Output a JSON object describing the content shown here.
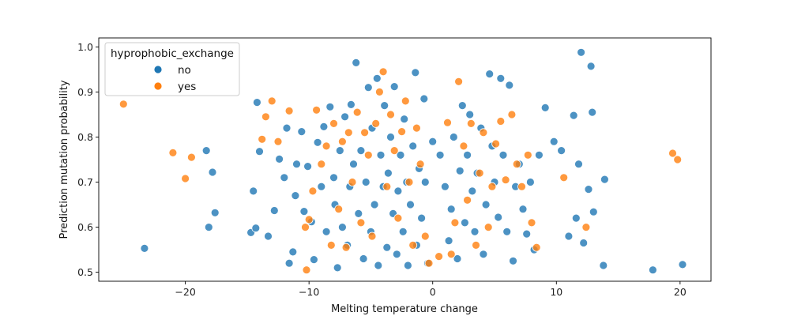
{
  "chart_data": {
    "type": "scatter",
    "xlabel": "Melting temperature change",
    "ylabel": "Prediction mutation probability",
    "xlim": [
      -27,
      22.5
    ],
    "ylim": [
      0.48,
      1.02
    ],
    "xticks": [
      -20,
      -10,
      0,
      10,
      20
    ],
    "xtick_labels": [
      "−20",
      "−10",
      "0",
      "10",
      "20"
    ],
    "yticks": [
      0.5,
      0.6,
      0.7,
      0.8,
      0.9,
      1.0
    ],
    "ytick_labels": [
      "0.5",
      "0.6",
      "0.7",
      "0.8",
      "0.9",
      "1.0"
    ],
    "grid": false,
    "legend": {
      "title": "hyprophobic_exchange",
      "placement": "top-left",
      "entries": [
        "no",
        "yes"
      ]
    },
    "series": [
      {
        "name": "no",
        "color": "#1f77b4",
        "points": [
          [
            -23.3,
            0.553
          ],
          [
            -18.3,
            0.77
          ],
          [
            -17.8,
            0.722
          ],
          [
            -17.6,
            0.632
          ],
          [
            -18.1,
            0.6
          ],
          [
            -14.2,
            0.877
          ],
          [
            -14.0,
            0.768
          ],
          [
            -14.5,
            0.68
          ],
          [
            -14.7,
            0.588
          ],
          [
            -14.3,
            0.598
          ],
          [
            -13.3,
            0.58
          ],
          [
            -12.8,
            0.637
          ],
          [
            -12.4,
            0.751
          ],
          [
            -12.0,
            0.71
          ],
          [
            -11.8,
            0.82
          ],
          [
            -11.6,
            0.52
          ],
          [
            -11.3,
            0.545
          ],
          [
            -11.1,
            0.67
          ],
          [
            -11.0,
            0.74
          ],
          [
            -10.6,
            0.812
          ],
          [
            -10.4,
            0.635
          ],
          [
            -10.1,
            0.735
          ],
          [
            -9.8,
            0.612
          ],
          [
            -9.6,
            0.528
          ],
          [
            -9.3,
            0.788
          ],
          [
            -9.0,
            0.69
          ],
          [
            -8.8,
            0.823
          ],
          [
            -8.6,
            0.59
          ],
          [
            -8.3,
            0.867
          ],
          [
            -8.0,
            0.71
          ],
          [
            -7.9,
            0.65
          ],
          [
            -7.7,
            0.51
          ],
          [
            -7.5,
            0.77
          ],
          [
            -7.3,
            0.6
          ],
          [
            -7.1,
            0.845
          ],
          [
            -6.9,
            0.56
          ],
          [
            -6.7,
            0.69
          ],
          [
            -6.6,
            0.872
          ],
          [
            -6.4,
            0.74
          ],
          [
            -6.2,
            0.965
          ],
          [
            -6.0,
            0.63
          ],
          [
            -5.8,
            0.77
          ],
          [
            -5.6,
            0.53
          ],
          [
            -5.4,
            0.7
          ],
          [
            -5.2,
            0.91
          ],
          [
            -5.0,
            0.59
          ],
          [
            -4.9,
            0.82
          ],
          [
            -4.7,
            0.65
          ],
          [
            -4.5,
            0.93
          ],
          [
            -4.4,
            0.515
          ],
          [
            -4.2,
            0.76
          ],
          [
            -4.0,
            0.69
          ],
          [
            -3.9,
            0.87
          ],
          [
            -3.7,
            0.555
          ],
          [
            -3.6,
            0.72
          ],
          [
            -3.4,
            0.8
          ],
          [
            -3.2,
            0.63
          ],
          [
            -3.1,
            0.912
          ],
          [
            -2.9,
            0.54
          ],
          [
            -2.8,
            0.68
          ],
          [
            -2.6,
            0.76
          ],
          [
            -2.4,
            0.59
          ],
          [
            -2.3,
            0.84
          ],
          [
            -2.1,
            0.7
          ],
          [
            -2.0,
            0.515
          ],
          [
            -1.8,
            0.65
          ],
          [
            -1.6,
            0.78
          ],
          [
            -1.4,
            0.943
          ],
          [
            -1.3,
            0.56
          ],
          [
            -1.1,
            0.73
          ],
          [
            -0.9,
            0.62
          ],
          [
            -0.7,
            0.885
          ],
          [
            -0.6,
            0.7
          ],
          [
            -0.4,
            0.52
          ],
          [
            0.0,
            0.79
          ],
          [
            0.6,
            0.76
          ],
          [
            1.0,
            0.69
          ],
          [
            1.3,
            0.57
          ],
          [
            1.5,
            0.64
          ],
          [
            1.7,
            0.8
          ],
          [
            2.0,
            0.53
          ],
          [
            2.2,
            0.725
          ],
          [
            2.4,
            0.87
          ],
          [
            2.6,
            0.61
          ],
          [
            2.8,
            0.76
          ],
          [
            3.0,
            0.85
          ],
          [
            3.2,
            0.68
          ],
          [
            3.4,
            0.59
          ],
          [
            3.6,
            0.72
          ],
          [
            3.9,
            0.82
          ],
          [
            4.1,
            0.54
          ],
          [
            4.3,
            0.65
          ],
          [
            4.6,
            0.94
          ],
          [
            4.8,
            0.78
          ],
          [
            5.0,
            0.7
          ],
          [
            5.3,
            0.622
          ],
          [
            5.5,
            0.93
          ],
          [
            5.7,
            0.76
          ],
          [
            6.0,
            0.59
          ],
          [
            6.2,
            0.915
          ],
          [
            6.5,
            0.525
          ],
          [
            6.7,
            0.69
          ],
          [
            7.0,
            0.74
          ],
          [
            7.3,
            0.64
          ],
          [
            7.6,
            0.585
          ],
          [
            7.9,
            0.7
          ],
          [
            8.2,
            0.55
          ],
          [
            8.6,
            0.76
          ],
          [
            9.1,
            0.865
          ],
          [
            9.8,
            0.79
          ],
          [
            10.4,
            0.77
          ],
          [
            11.0,
            0.58
          ],
          [
            11.4,
            0.848
          ],
          [
            11.8,
            0.74
          ],
          [
            12.0,
            0.988
          ],
          [
            12.2,
            0.565
          ],
          [
            12.6,
            0.684
          ],
          [
            12.8,
            0.957
          ],
          [
            12.9,
            0.855
          ],
          [
            13.0,
            0.634
          ],
          [
            13.9,
            0.706
          ],
          [
            13.8,
            0.515
          ],
          [
            17.8,
            0.505
          ],
          [
            20.2,
            0.517
          ],
          [
            11.6,
            0.62
          ]
        ]
      },
      {
        "name": "yes",
        "color": "#ff7f0e",
        "points": [
          [
            -25.0,
            0.873
          ],
          [
            -21.0,
            0.765
          ],
          [
            -20.0,
            0.708
          ],
          [
            -19.5,
            0.755
          ],
          [
            -13.8,
            0.795
          ],
          [
            -13.5,
            0.845
          ],
          [
            -13.0,
            0.88
          ],
          [
            -12.5,
            0.79
          ],
          [
            -11.6,
            0.858
          ],
          [
            -10.3,
            0.6
          ],
          [
            -10.2,
            0.505
          ],
          [
            -10.0,
            0.617
          ],
          [
            -9.7,
            0.68
          ],
          [
            -9.4,
            0.86
          ],
          [
            -9.0,
            0.74
          ],
          [
            -8.6,
            0.78
          ],
          [
            -8.2,
            0.56
          ],
          [
            -8.0,
            0.83
          ],
          [
            -7.6,
            0.64
          ],
          [
            -7.3,
            0.79
          ],
          [
            -7.0,
            0.555
          ],
          [
            -6.8,
            0.81
          ],
          [
            -6.5,
            0.7
          ],
          [
            -6.1,
            0.855
          ],
          [
            -5.8,
            0.61
          ],
          [
            -5.5,
            0.81
          ],
          [
            -5.2,
            0.76
          ],
          [
            -4.9,
            0.58
          ],
          [
            -4.6,
            0.83
          ],
          [
            -4.3,
            0.9
          ],
          [
            -4.0,
            0.945
          ],
          [
            -3.7,
            0.69
          ],
          [
            -3.4,
            0.85
          ],
          [
            -3.1,
            0.77
          ],
          [
            -2.8,
            0.62
          ],
          [
            -2.5,
            0.812
          ],
          [
            -2.2,
            0.88
          ],
          [
            -1.9,
            0.7
          ],
          [
            -1.6,
            0.56
          ],
          [
            -1.3,
            0.82
          ],
          [
            -1.0,
            0.74
          ],
          [
            -0.6,
            0.58
          ],
          [
            -0.3,
            0.52
          ],
          [
            0.5,
            0.535
          ],
          [
            1.2,
            0.832
          ],
          [
            1.5,
            0.54
          ],
          [
            1.8,
            0.61
          ],
          [
            2.1,
            0.923
          ],
          [
            2.5,
            0.78
          ],
          [
            2.8,
            0.66
          ],
          [
            3.1,
            0.83
          ],
          [
            3.5,
            0.56
          ],
          [
            3.8,
            0.72
          ],
          [
            4.1,
            0.81
          ],
          [
            4.5,
            0.6
          ],
          [
            4.8,
            0.69
          ],
          [
            5.1,
            0.785
          ],
          [
            5.5,
            0.835
          ],
          [
            5.9,
            0.705
          ],
          [
            6.4,
            0.85
          ],
          [
            6.8,
            0.74
          ],
          [
            7.2,
            0.69
          ],
          [
            7.7,
            0.76
          ],
          [
            8.0,
            0.61
          ],
          [
            8.4,
            0.555
          ],
          [
            10.6,
            0.71
          ],
          [
            12.4,
            0.6
          ],
          [
            19.4,
            0.764
          ],
          [
            19.8,
            0.75
          ]
        ]
      }
    ]
  }
}
